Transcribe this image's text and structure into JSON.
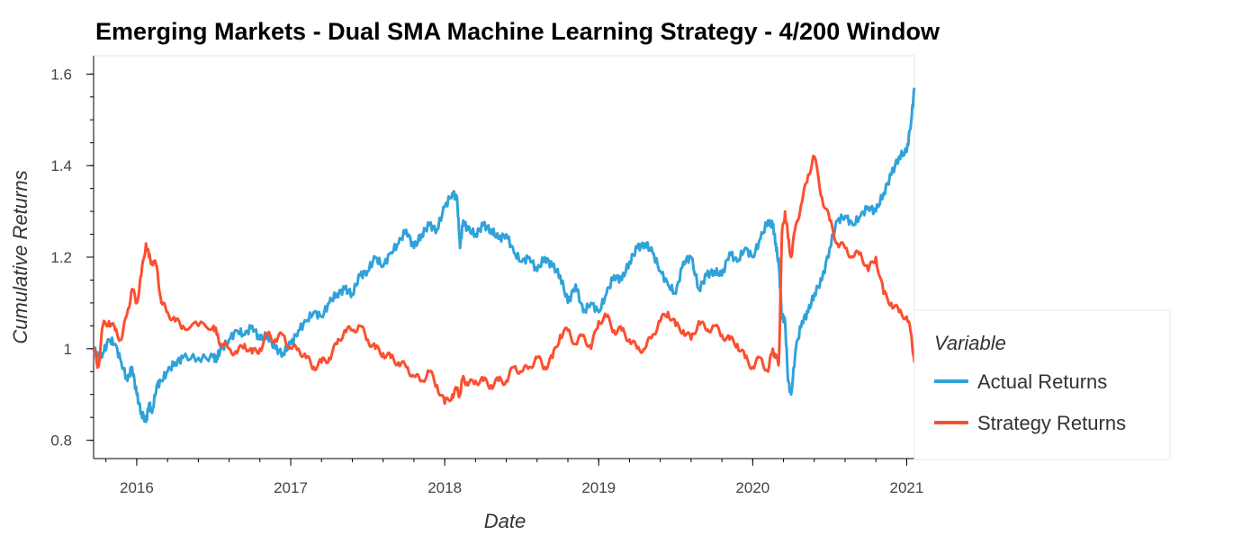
{
  "chart_data": {
    "type": "line",
    "title": "Emerging Markets - Dual SMA Machine Learning Strategy - 4/200 Window",
    "xlabel": "Date",
    "ylabel": "Cumulative Returns",
    "xlim": [
      2015.72,
      2021.05
    ],
    "ylim": [
      0.76,
      1.64
    ],
    "x_ticks": [
      2016,
      2017,
      2018,
      2019,
      2020,
      2021
    ],
    "x_tick_labels": [
      "2016",
      "2017",
      "2018",
      "2019",
      "2020",
      "2021"
    ],
    "y_ticks": [
      0.8,
      1.0,
      1.2,
      1.4,
      1.6
    ],
    "y_tick_labels": [
      "0.8",
      "1",
      "1.2",
      "1.4",
      "1.6"
    ],
    "grid": false,
    "legend": {
      "title": "Variable",
      "placement": "right"
    },
    "series": [
      {
        "name": "Actual Returns",
        "color": "#30a2da",
        "x": [
          2015.72,
          2015.75,
          2015.78,
          2015.82,
          2015.86,
          2015.9,
          2015.94,
          2015.97,
          2016.0,
          2016.03,
          2016.06,
          2016.08,
          2016.1,
          2016.13,
          2016.16,
          2016.2,
          2016.25,
          2016.3,
          2016.4,
          2016.5,
          2016.52,
          2016.55,
          2016.6,
          2016.65,
          2016.7,
          2016.75,
          2016.8,
          2016.85,
          2016.9,
          2016.95,
          2017.0,
          2017.05,
          2017.1,
          2017.15,
          2017.2,
          2017.25,
          2017.3,
          2017.35,
          2017.4,
          2017.45,
          2017.5,
          2017.55,
          2017.6,
          2017.65,
          2017.7,
          2017.75,
          2017.8,
          2017.85,
          2017.9,
          2017.95,
          2018.0,
          2018.05,
          2018.08,
          2018.1,
          2018.12,
          2018.15,
          2018.2,
          2018.25,
          2018.3,
          2018.35,
          2018.4,
          2018.45,
          2018.5,
          2018.55,
          2018.6,
          2018.65,
          2018.7,
          2018.75,
          2018.8,
          2018.85,
          2018.9,
          2018.95,
          2019.0,
          2019.05,
          2019.1,
          2019.15,
          2019.2,
          2019.25,
          2019.3,
          2019.35,
          2019.4,
          2019.45,
          2019.5,
          2019.55,
          2019.6,
          2019.65,
          2019.7,
          2019.75,
          2019.8,
          2019.85,
          2019.9,
          2019.95,
          2020.0,
          2020.05,
          2020.1,
          2020.13,
          2020.15,
          2020.17,
          2020.19,
          2020.21,
          2020.23,
          2020.25,
          2020.28,
          2020.32,
          2020.36,
          2020.4,
          2020.45,
          2020.5,
          2020.55,
          2020.6,
          2020.65,
          2020.7,
          2020.75,
          2020.8,
          2020.85,
          2020.9,
          2020.95,
          2021.0,
          2021.03,
          2021.05
        ],
        "y": [
          1.0,
          0.98,
          0.99,
          1.02,
          1.01,
          0.97,
          0.93,
          0.96,
          0.9,
          0.86,
          0.84,
          0.88,
          0.86,
          0.92,
          0.93,
          0.95,
          0.97,
          0.98,
          0.98,
          0.98,
          0.98,
          1.0,
          1.02,
          1.04,
          1.03,
          1.05,
          1.02,
          1.03,
          1.0,
          0.99,
          1.01,
          1.04,
          1.06,
          1.08,
          1.07,
          1.1,
          1.12,
          1.13,
          1.12,
          1.16,
          1.17,
          1.2,
          1.18,
          1.21,
          1.23,
          1.26,
          1.22,
          1.25,
          1.27,
          1.26,
          1.31,
          1.34,
          1.33,
          1.22,
          1.28,
          1.26,
          1.25,
          1.27,
          1.26,
          1.24,
          1.25,
          1.21,
          1.19,
          1.2,
          1.17,
          1.2,
          1.18,
          1.16,
          1.1,
          1.14,
          1.08,
          1.1,
          1.08,
          1.12,
          1.16,
          1.15,
          1.19,
          1.22,
          1.23,
          1.21,
          1.17,
          1.14,
          1.12,
          1.19,
          1.2,
          1.13,
          1.16,
          1.17,
          1.16,
          1.21,
          1.19,
          1.22,
          1.2,
          1.24,
          1.28,
          1.27,
          1.23,
          1.18,
          1.07,
          1.06,
          0.93,
          0.9,
          1.0,
          1.06,
          1.08,
          1.12,
          1.15,
          1.22,
          1.28,
          1.29,
          1.27,
          1.29,
          1.31,
          1.3,
          1.34,
          1.38,
          1.42,
          1.43,
          1.5,
          1.57
        ]
      },
      {
        "name": "Strategy Returns",
        "color": "#fc4f30",
        "x": [
          2015.72,
          2015.75,
          2015.78,
          2015.82,
          2015.86,
          2015.9,
          2015.94,
          2015.97,
          2016.0,
          2016.03,
          2016.06,
          2016.08,
          2016.1,
          2016.13,
          2016.16,
          2016.2,
          2016.25,
          2016.3,
          2016.4,
          2016.5,
          2016.52,
          2016.55,
          2016.6,
          2016.65,
          2016.7,
          2016.75,
          2016.8,
          2016.85,
          2016.9,
          2016.95,
          2017.0,
          2017.05,
          2017.1,
          2017.15,
          2017.2,
          2017.25,
          2017.3,
          2017.35,
          2017.4,
          2017.45,
          2017.5,
          2017.55,
          2017.6,
          2017.65,
          2017.7,
          2017.75,
          2017.8,
          2017.85,
          2017.9,
          2017.95,
          2018.0,
          2018.05,
          2018.08,
          2018.1,
          2018.12,
          2018.15,
          2018.2,
          2018.25,
          2018.3,
          2018.35,
          2018.4,
          2018.45,
          2018.5,
          2018.55,
          2018.6,
          2018.65,
          2018.7,
          2018.75,
          2018.8,
          2018.85,
          2018.9,
          2018.95,
          2019.0,
          2019.05,
          2019.1,
          2019.15,
          2019.2,
          2019.25,
          2019.3,
          2019.35,
          2019.4,
          2019.45,
          2019.5,
          2019.55,
          2019.6,
          2019.65,
          2019.7,
          2019.75,
          2019.8,
          2019.85,
          2019.9,
          2019.95,
          2020.0,
          2020.05,
          2020.1,
          2020.13,
          2020.15,
          2020.17,
          2020.19,
          2020.21,
          2020.23,
          2020.25,
          2020.28,
          2020.32,
          2020.36,
          2020.4,
          2020.45,
          2020.5,
          2020.55,
          2020.6,
          2020.65,
          2020.7,
          2020.75,
          2020.8,
          2020.85,
          2020.9,
          2020.95,
          2021.0,
          2021.03,
          2021.05
        ],
        "y": [
          1.0,
          0.96,
          1.05,
          1.06,
          1.04,
          1.02,
          1.08,
          1.13,
          1.1,
          1.16,
          1.23,
          1.2,
          1.19,
          1.18,
          1.1,
          1.08,
          1.06,
          1.05,
          1.05,
          1.05,
          1.03,
          1.01,
          1.0,
          0.99,
          1.01,
          0.99,
          1.0,
          1.03,
          1.02,
          1.03,
          1.0,
          1.0,
          0.98,
          0.96,
          0.97,
          0.98,
          1.01,
          1.04,
          1.04,
          1.05,
          1.02,
          1.0,
          0.99,
          0.98,
          0.97,
          0.96,
          0.94,
          0.93,
          0.95,
          0.92,
          0.88,
          0.9,
          0.91,
          0.9,
          0.94,
          0.92,
          0.93,
          0.93,
          0.92,
          0.93,
          0.93,
          0.96,
          0.95,
          0.96,
          0.98,
          0.96,
          0.98,
          1.03,
          1.04,
          1.01,
          1.03,
          1.0,
          1.06,
          1.07,
          1.04,
          1.04,
          1.02,
          1.0,
          1.0,
          1.03,
          1.06,
          1.08,
          1.05,
          1.04,
          1.02,
          1.06,
          1.04,
          1.05,
          1.03,
          1.02,
          1.01,
          0.98,
          0.96,
          0.98,
          0.95,
          1.0,
          0.98,
          0.97,
          1.25,
          1.3,
          1.24,
          1.2,
          1.27,
          1.32,
          1.38,
          1.42,
          1.33,
          1.28,
          1.23,
          1.22,
          1.2,
          1.21,
          1.17,
          1.2,
          1.12,
          1.1,
          1.08,
          1.07,
          1.03,
          0.97
        ]
      }
    ]
  }
}
